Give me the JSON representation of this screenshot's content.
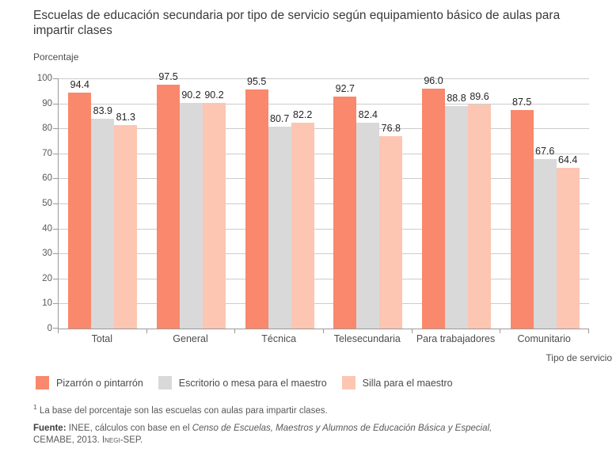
{
  "chart_data": {
    "type": "bar",
    "title": "Escuelas de educación secundaria por tipo de servicio según equipamiento básico de aulas para impartir clases",
    "ylabel": "Porcentaje",
    "xlabel": "Tipo de servicio",
    "ylim": [
      0,
      100
    ],
    "yticks": [
      0,
      10,
      20,
      30,
      40,
      50,
      60,
      70,
      80,
      90,
      100
    ],
    "grid": true,
    "legend_position": "bottom",
    "value_label_decimals": 1,
    "categories": [
      "Total",
      "General",
      "Técnica",
      "Telesecundaria",
      "Para trabajadores",
      "Comunitario"
    ],
    "series": [
      {
        "name": "Pizarrón o pintarrón",
        "color": "#f9886c",
        "values": [
          94.4,
          97.5,
          95.5,
          92.7,
          96.0,
          87.5
        ]
      },
      {
        "name": "Escritorio o mesa para el maestro",
        "color": "#d9d9d9",
        "values": [
          83.9,
          90.2,
          80.7,
          82.4,
          88.8,
          67.6
        ]
      },
      {
        "name": "Silla para el maestro",
        "color": "#fcc6b2",
        "values": [
          81.3,
          90.2,
          82.2,
          76.8,
          89.6,
          64.4
        ]
      }
    ],
    "colors": {
      "gridline": "#cccccc",
      "axis": "#9a9a9a"
    }
  },
  "footnote": {
    "marker": "1",
    "text": " La base del porcentaje son las escuelas con aulas para impartir clases."
  },
  "source": {
    "label": "Fuente:",
    "text_before_italic": " INEE, cálculos con base en el ",
    "italic": "Censo de Escuelas, Maestros y Alumnos de Educación Básica y Especial,",
    "line2_before_smallcaps": "CEMABE, 2013. ",
    "smallcaps": "Inegi",
    "line2_after_smallcaps": "-SEP."
  }
}
